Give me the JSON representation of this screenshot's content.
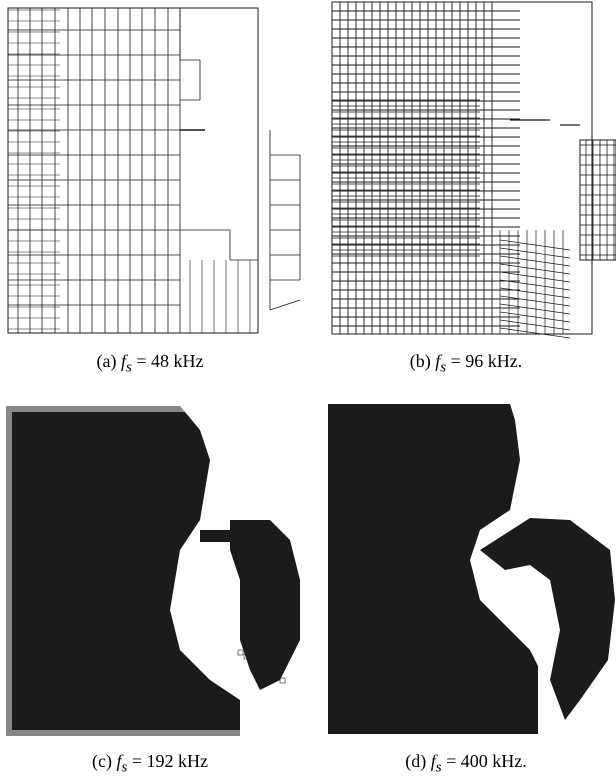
{
  "figure": {
    "panels": [
      {
        "id": "a",
        "label": "(a)",
        "variable": "f",
        "subscript": "s",
        "relation": "=",
        "value": "48",
        "unit": "kHz",
        "trailing": ""
      },
      {
        "id": "b",
        "label": "(b)",
        "variable": "f",
        "subscript": "s",
        "relation": "=",
        "value": "96",
        "unit": "kHz.",
        "trailing": ""
      },
      {
        "id": "c",
        "label": "(c)",
        "variable": "f",
        "subscript": "s",
        "relation": "=",
        "value": "192",
        "unit": "kHz",
        "trailing": ""
      },
      {
        "id": "d",
        "label": "(d)",
        "variable": "f",
        "subscript": "s",
        "relation": "=",
        "value": "400",
        "unit": "kHz.",
        "trailing": ""
      }
    ]
  },
  "colors": {
    "mesh": "#1a1a1a",
    "fill": "#1b1b1b",
    "border": "#888888",
    "background": "#ffffff"
  }
}
